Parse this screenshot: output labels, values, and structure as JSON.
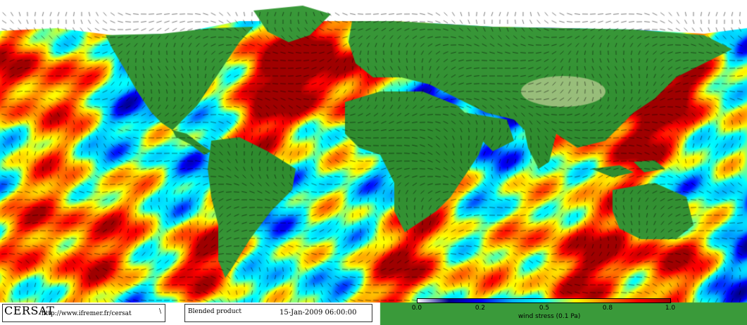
{
  "colors": {
    "ocean_scale": [
      "#ffffff",
      "#00008c",
      "#0000ff",
      "#00b4ff",
      "#00ffff",
      "#ffff00",
      "#ff8000",
      "#ff0000",
      "#a00000"
    ],
    "land": "#2e8b2e",
    "ice": "#ffffff"
  },
  "footer": {
    "logo": "CERSAT",
    "url": "http://www.ifremer.fr/cersat",
    "mark": "\\",
    "product": "Blended product",
    "datetime": "15-Jan-2009 06:00:00"
  },
  "legend": {
    "ticks": [
      "0.0",
      "0.2",
      "0.5",
      "0.8",
      "1.0"
    ],
    "title": "wind stress (0.1 Pa)"
  }
}
